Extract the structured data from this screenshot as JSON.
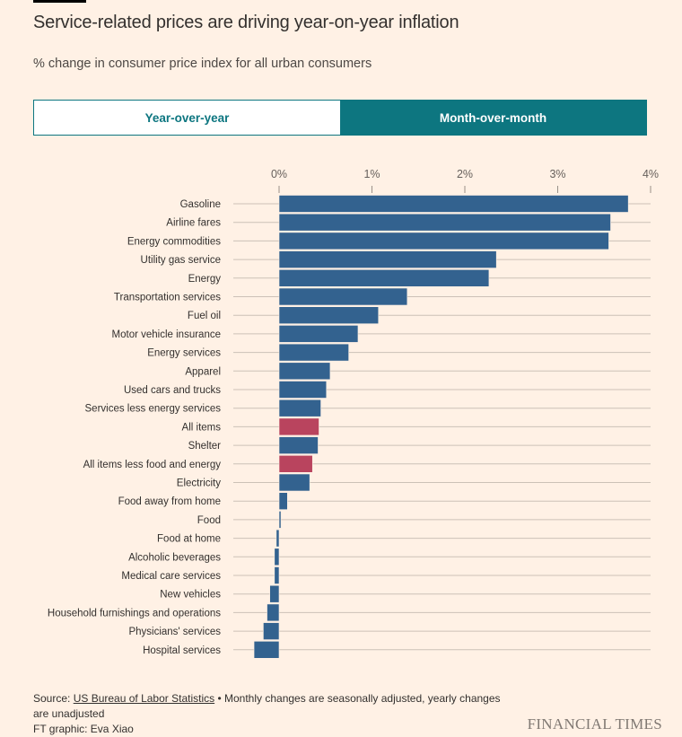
{
  "header": {
    "title": "Service-related prices are driving year-on-year inflation",
    "subtitle": "% change in consumer price index for all urban consumers"
  },
  "toggle": {
    "options": [
      "Year-over-year",
      "Month-over-month"
    ],
    "selected": "Month-over-month"
  },
  "colors": {
    "bar": "#33628f",
    "highlight": "#b9445e",
    "accent": "#0d7680",
    "background": "#fff1e5"
  },
  "chart_data": {
    "type": "bar",
    "orientation": "horizontal",
    "xlim": [
      -0.3,
      4
    ],
    "ticks": [
      0,
      1,
      2,
      3,
      4
    ],
    "tick_labels": [
      "0%",
      "1%",
      "2%",
      "3%",
      "4%"
    ],
    "grid": true,
    "categories": [
      "Gasoline",
      "Airline fares",
      "Energy commodities",
      "Utility gas service",
      "Energy",
      "Transportation services",
      "Fuel oil",
      "Motor vehicle insurance",
      "Energy services",
      "Apparel",
      "Used cars and trucks",
      "Services less energy services",
      "All items",
      "Shelter",
      "All items less food and energy",
      "Electricity",
      "Food away from home",
      "Food",
      "Food at home",
      "Alcoholic beverages",
      "Medical care services",
      "New vehicles",
      "Household furnishings and operations",
      "Physicians' services",
      "Hospital services"
    ],
    "values": [
      3.76,
      3.57,
      3.55,
      2.34,
      2.26,
      1.38,
      1.07,
      0.85,
      0.75,
      0.55,
      0.51,
      0.45,
      0.43,
      0.42,
      0.36,
      0.33,
      0.09,
      0.02,
      -0.03,
      -0.05,
      -0.05,
      -0.1,
      -0.13,
      -0.17,
      -0.27
    ],
    "highlighted": [
      "All items",
      "All items less food and energy"
    ]
  },
  "footer": {
    "source_label": "Source: ",
    "source_link": "US Bureau of Labor Statistics",
    "note": " • Monthly changes are seasonally adjusted, yearly changes are unadjusted",
    "credit": "FT graphic: Eva Xiao",
    "logo": "FINANCIAL TIMES"
  }
}
